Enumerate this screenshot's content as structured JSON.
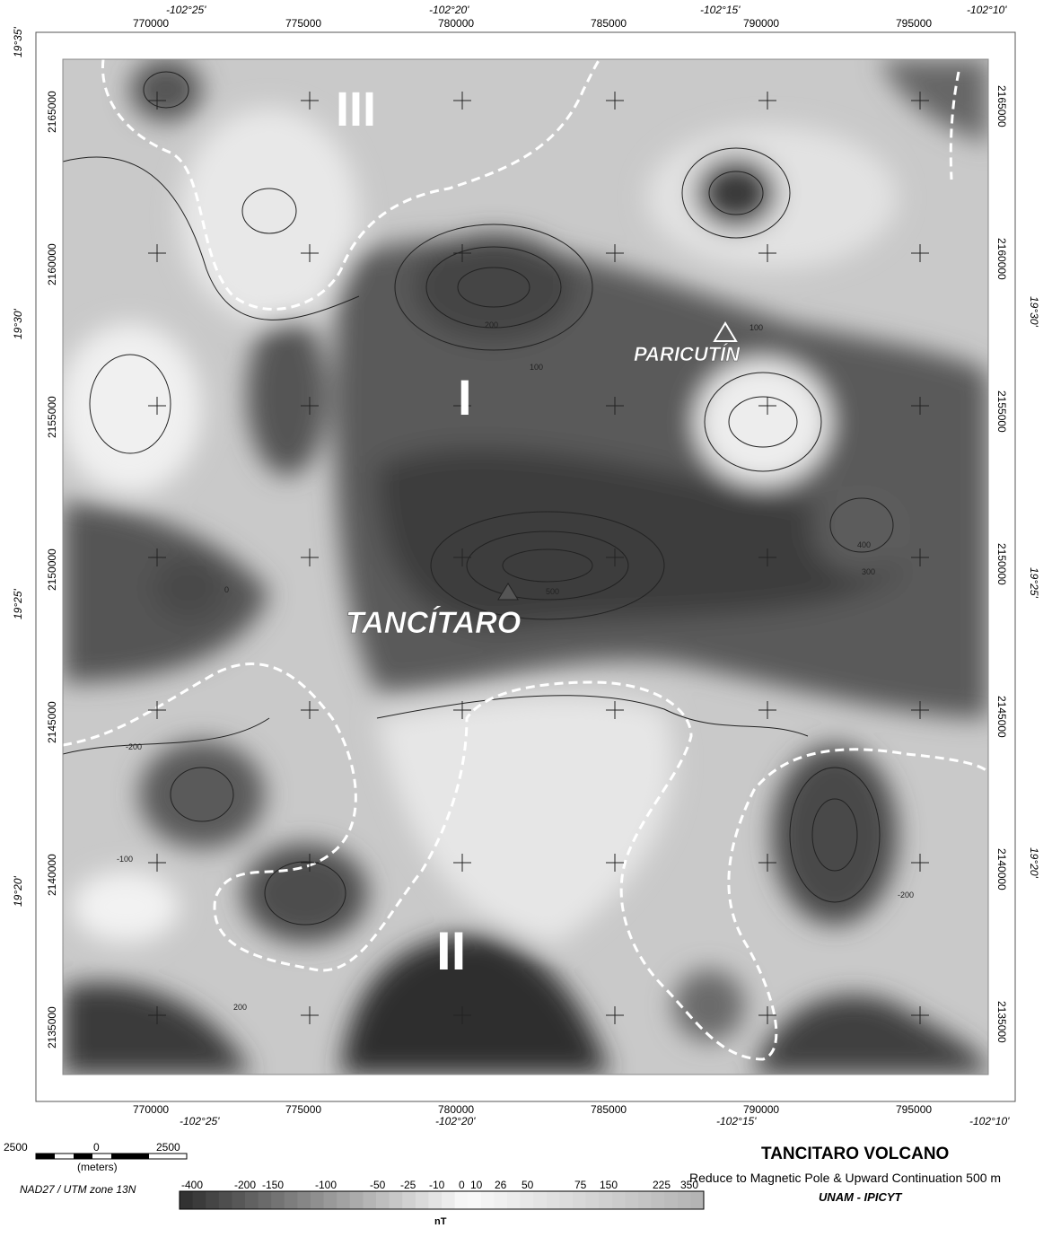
{
  "title": "TANCITARO VOLCANO",
  "subtitle": "Reduce to Magnetic Pole & Upward Continuation 500 m",
  "institution": "UNAM - IPICYT",
  "datum": "NAD27 / UTM zone 13N",
  "scale_bar": {
    "labels": [
      "2500",
      "0",
      "2500"
    ],
    "unit": "(meters)"
  },
  "colorbar": {
    "unit": "nT",
    "labels": [
      "-400",
      "-200",
      "-150",
      "-100",
      "-50",
      "-25",
      "-10",
      "0",
      "10",
      "26",
      "50",
      "75",
      "150",
      "225",
      "350"
    ]
  },
  "easting_labels": [
    "770000",
    "775000",
    "780000",
    "785000",
    "790000",
    "795000"
  ],
  "northing_labels": [
    "2135000",
    "2140000",
    "2145000",
    "2150000",
    "2155000",
    "2160000",
    "2165000"
  ],
  "longitude_labels": [
    "-102°25'",
    "-102°20'",
    "-102°15'",
    "-102°10'"
  ],
  "latitude_labels": [
    "19°20'",
    "19°25'",
    "19°30'",
    "19°35'"
  ],
  "features": {
    "volcano_main": "TANCÍTARO",
    "volcano_secondary": "PARICUTÍN",
    "zones": [
      "I",
      "II",
      "III"
    ]
  },
  "contour_labels": [
    "200",
    "100",
    "0",
    "-100",
    "-200",
    "300",
    "400",
    "500"
  ]
}
